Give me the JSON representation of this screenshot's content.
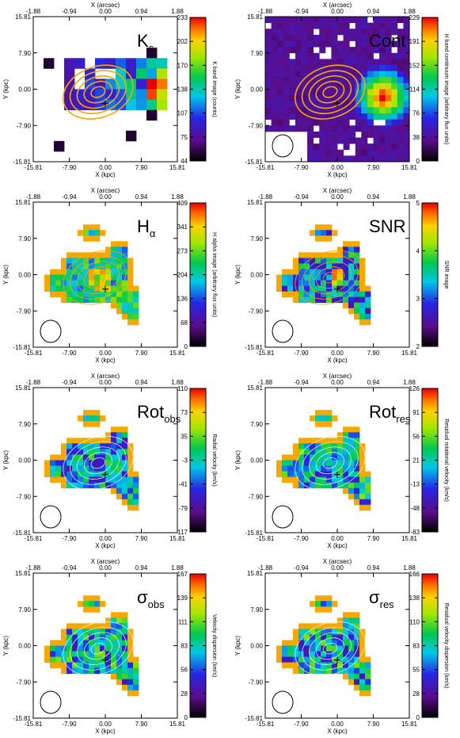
{
  "chart_data": {
    "type": "heatmap",
    "common": {
      "x_bottom_label": "X (kpc)",
      "x_top_label": "X (arcsec)",
      "y_label": "Y (kpc)",
      "x_ticks_kpc": [
        "-15.81",
        "-7.90",
        "0.00",
        "7.90",
        "15.81"
      ],
      "x_ticks_arcsec": [
        "-1.88",
        "-0.94",
        "0.00",
        "0.94",
        "1.88"
      ],
      "y_ticks_kpc": [
        "-15.81",
        "-7.90",
        "0.00",
        "7.90",
        "15.81"
      ],
      "xlim_kpc": [
        -15.81,
        15.81
      ],
      "ylim_kpc": [
        -15.81,
        15.81
      ],
      "xlim_arcsec": [
        -1.88,
        1.88
      ],
      "contour_color": "#f5a800",
      "colormap": "rainbow"
    },
    "panels": [
      {
        "id": "ks",
        "title": "K",
        "subscript": "s",
        "colorbar_label": "K band image (counts)",
        "colorbar_ticks": [
          "233",
          "202",
          "170",
          "138",
          "107",
          "75",
          "44"
        ],
        "colorbar_range": [
          44,
          233
        ],
        "beam_shown": false
      },
      {
        "id": "cont",
        "title": "Cont",
        "subscript": "",
        "colorbar_label": "H band continuum image (arbitrary flux units)",
        "colorbar_ticks": [
          "229",
          "191",
          "152",
          "114",
          "76",
          "38",
          "0"
        ],
        "colorbar_range": [
          0,
          229
        ],
        "beam_shown": true
      },
      {
        "id": "halpha",
        "title": "H",
        "subscript": "α",
        "colorbar_label": "H alpha image (arbitrary flux units)",
        "colorbar_ticks": [
          "409",
          "341",
          "273",
          "204",
          "136",
          "68",
          "0"
        ],
        "colorbar_range": [
          0,
          409
        ],
        "beam_shown": true
      },
      {
        "id": "snr",
        "title": "SNR",
        "subscript": "",
        "colorbar_label": "SNR image",
        "colorbar_ticks": [
          "5",
          "4",
          "3",
          "2"
        ],
        "colorbar_range": [
          2,
          5
        ],
        "beam_shown": true
      },
      {
        "id": "rotobs",
        "title": "Rot",
        "subscript": "obs",
        "colorbar_label": "Radial velocity (km/s)",
        "colorbar_ticks": [
          "110",
          "73",
          "35",
          "-3",
          "-41",
          "-79",
          "-117"
        ],
        "colorbar_range": [
          -117,
          110
        ],
        "beam_shown": true
      },
      {
        "id": "rotres",
        "title": "Rot",
        "subscript": "res",
        "colorbar_label": "Residual rotational velocity (km/s)",
        "colorbar_ticks": [
          "126",
          "91",
          "56",
          "21",
          "-13",
          "-48",
          "-83"
        ],
        "colorbar_range": [
          -83,
          126
        ],
        "beam_shown": true
      },
      {
        "id": "sigobs",
        "title": "σ",
        "subscript": "obs",
        "colorbar_label": "Velocity dispersion (km/s)",
        "colorbar_ticks": [
          "167",
          "139",
          "111",
          "83",
          "56",
          "28",
          "0"
        ],
        "colorbar_range": [
          0,
          167
        ],
        "beam_shown": true
      },
      {
        "id": "sigres",
        "title": "σ",
        "subscript": "res",
        "colorbar_label": "Residual velocity dispersion (km/s)",
        "colorbar_ticks": [
          "166",
          "138",
          "110",
          "83",
          "55",
          "28",
          "0"
        ],
        "colorbar_range": [
          0,
          166
        ],
        "beam_shown": true
      }
    ]
  }
}
